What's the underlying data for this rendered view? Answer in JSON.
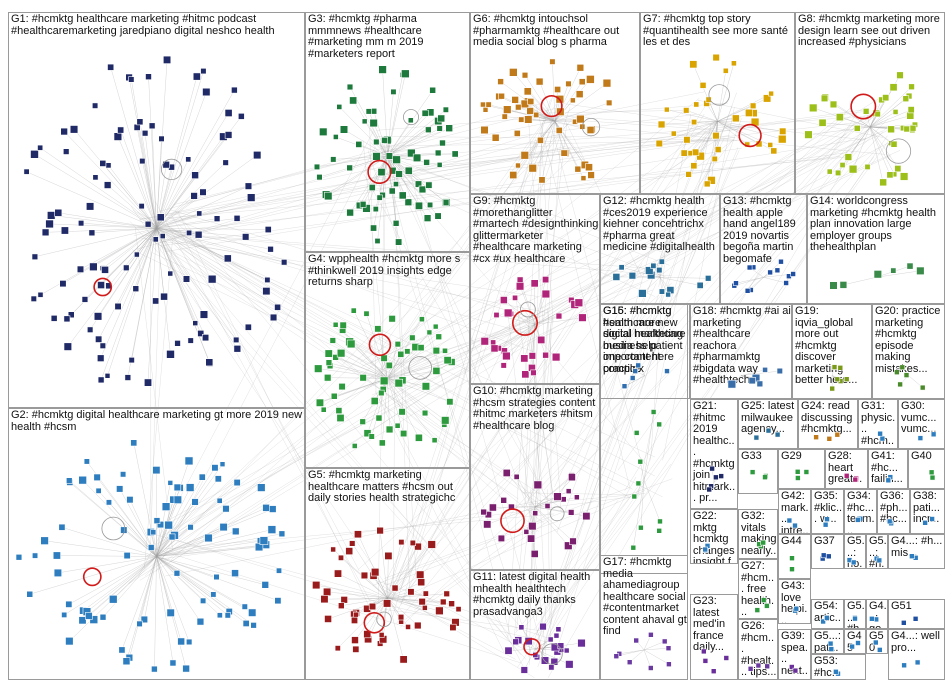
{
  "graph": {
    "edge_color": "#9e9e9e",
    "groups": [
      {
        "id": "G1",
        "label": "G1: #hcmktg healthcare marketing #hitmc podcast #healthcaremarketing jaredpiano digital neshco health",
        "color": "#1f2a66",
        "nodes": 115
      },
      {
        "id": "G2",
        "label": "G2: #hcmktg digital healthcare marketing gt more 2019 new health #hcsm",
        "color": "#2e7ebf",
        "nodes": 95
      },
      {
        "id": "G3",
        "label": "G3: #hcmktg #pharma mmmnews #healthcare #marketing mm m 2019 #marketers report",
        "color": "#1e7a3c",
        "nodes": 75
      },
      {
        "id": "G4",
        "label": "G4: wpphealth #hcmktg more s #thinkwell 2019 insights edge returns sharp",
        "color": "#2e9a3e",
        "nodes": 65
      },
      {
        "id": "G5",
        "label": "G5: #hcmktg marketing healthcare matters #hcsm out daily stories health strategichc",
        "color": "#9a1b1b",
        "nodes": 55
      },
      {
        "id": "G6",
        "label": "G6: #hcmktg intouchsol #pharmamktg #healthcare out media social blog s pharma",
        "color": "#c07a1a",
        "nodes": 55
      },
      {
        "id": "G7",
        "label": "G7: #hcmktg top story #quantihealth see more santé les et des",
        "color": "#d9a400",
        "nodes": 40
      },
      {
        "id": "G8",
        "label": "G8: #hcmktg marketing more design learn see out driven increased #physicians",
        "color": "#9cbf1a",
        "nodes": 40
      },
      {
        "id": "G9",
        "label": "G9: #hcmktg #morethanglitter #martech #designthinking glittermarketer #healthcare marketing #cx #ux healthcare",
        "color": "#b0257a",
        "nodes": 30
      },
      {
        "id": "G10",
        "label": "G10: #hcmktg marketing #hcsm strategies content #hitmc marketers #hitsm #healthcare blog",
        "color": "#7a1f6e",
        "nodes": 26
      },
      {
        "id": "G11",
        "label": "G11: latest digital health mhealth healthtech #hcmktg daily thanks prasadvanga3",
        "color": "#6a2e9a",
        "nodes": 22
      },
      {
        "id": "G12",
        "label": "G12: #hcmktg health #ces2019 experience kiehner concehtrichx #pharma great medicine #digitalhealth",
        "color": "#2a6e9a",
        "nodes": 14
      },
      {
        "id": "G13",
        "label": "G13: #hcmktg health apple hand angel189 2019 novartis begoña martin begomafe",
        "color": "#1e4fa0",
        "nodes": 12
      },
      {
        "id": "G14",
        "label": "G14: worldcongress marketing #hcmktg health plan innovation large employer groups thehealthplan",
        "color": "#3a8a4a",
        "nodes": 6
      },
      {
        "id": "G15",
        "label": "G15: #hcmktg healthcare new digital marketing business patient one content complex",
        "color": "#2e9a3e",
        "nodes": 10
      },
      {
        "id": "G16",
        "label": "G16: #hcmktg #smm more social healthcare media help important here practice",
        "color": "#2f6fb0",
        "nodes": 6
      },
      {
        "id": "G17",
        "label": "G17: #hcmktg media ahamediagroup healthcare social #contentmarket content ahaval gt find",
        "color": "#6a3aa0",
        "nodes": 9
      },
      {
        "id": "G18",
        "label": "G18: #hcmktg #ai ai marketing #healthcare reachora #pharmamktg #bigdata way #healthtech",
        "color": "#3a6ea8",
        "nodes": 6
      },
      {
        "id": "G19",
        "label": "G19: iqvia_global more out #hcmktg discover marketing better here...",
        "color": "#7a9a1a",
        "nodes": 6
      },
      {
        "id": "G20",
        "label": "G20: practice marketing #hcmktg episode making mistakes...",
        "color": "#4a8a2a",
        "nodes": 5
      },
      {
        "id": "G21",
        "label": "G21: #hitmc 2019 healthc... #hcmktg join hitmark... pr...",
        "color": "#1f2a66",
        "nodes": 5
      },
      {
        "id": "G22",
        "label": "G22: mktg hcmktg changes insight f cco...",
        "color": "#2e7ebf",
        "nodes": 4
      },
      {
        "id": "G23",
        "label": "G23: latest med'in france daily...",
        "color": "#6a2e9a",
        "nodes": 4
      },
      {
        "id": "G24",
        "label": "G24: read discussing #hcmktg...",
        "color": "#c07a1a",
        "nodes": 3
      },
      {
        "id": "G25",
        "label": "G25: latest milwaukee agency...",
        "color": "#2a6e9a",
        "nodes": 3
      },
      {
        "id": "G26",
        "label": "G26: #hcm... #healt... tips...",
        "color": "#6a3aa0",
        "nodes": 3
      },
      {
        "id": "G27",
        "label": "G27: #hcm... free health...",
        "color": "#2e9a3e",
        "nodes": 3
      },
      {
        "id": "G28",
        "label": "G28: heart great...",
        "color": "#b0257a",
        "nodes": 3
      },
      {
        "id": "G29",
        "label": "G29",
        "color": "#2e9a3e",
        "nodes": 3
      },
      {
        "id": "G30",
        "label": "G30: vumc... vumc...",
        "color": "#2e7ebf",
        "nodes": 2
      },
      {
        "id": "G31",
        "label": "G31: physic... #hcm...",
        "color": "#2e7ebf",
        "nodes": 2
      },
      {
        "id": "G32",
        "label": "G32: vitals making nearly...",
        "color": "#2e9a3e",
        "nodes": 3
      },
      {
        "id": "G33",
        "label": "G33",
        "color": "#2e9a3e",
        "nodes": 3
      },
      {
        "id": "G34",
        "label": "G34: #hc... team...",
        "color": "#2e7ebf",
        "nodes": 2
      },
      {
        "id": "G35",
        "label": "G35: #klic... w...",
        "color": "#2e7ebf",
        "nodes": 2
      },
      {
        "id": "G36",
        "label": "G36: #ph... #hc...",
        "color": "#2e7ebf",
        "nodes": 2
      },
      {
        "id": "G37",
        "label": "G37",
        "color": "#1e4fa0",
        "nodes": 3
      },
      {
        "id": "G38",
        "label": "G38: pati... incr...",
        "color": "#2e7ebf",
        "nodes": 2
      },
      {
        "id": "G39",
        "label": "G39: spea... next...",
        "color": "#6a2e9a",
        "nodes": 2
      },
      {
        "id": "G40",
        "label": "G40",
        "color": "#2e9a3e",
        "nodes": 2
      },
      {
        "id": "G41",
        "label": "G41: #hc... failin...",
        "color": "#2e7ebf",
        "nodes": 2
      },
      {
        "id": "G42",
        "label": "G42: mark... intre...",
        "color": "#2e7ebf",
        "nodes": 2
      },
      {
        "id": "G43",
        "label": "G43: love helpi...",
        "color": "#2e7ebf",
        "nodes": 2
      },
      {
        "id": "G44",
        "label": "G44",
        "color": "#2e9a3e",
        "nodes": 2
      },
      {
        "id": "G45",
        "label": "G45",
        "color": "#2e7ebf",
        "nodes": 2
      },
      {
        "id": "G46",
        "label": "G5...: #h... nyti...",
        "color": "#2e7ebf",
        "nodes": 2
      },
      {
        "id": "G47",
        "label": "G4...: #h... reg...",
        "color": "#2e7ebf",
        "nodes": 2
      },
      {
        "id": "G48",
        "label": "G4...: #h... mis...",
        "color": "#2e7ebf",
        "nodes": 2
      },
      {
        "id": "G49",
        "label": "G4...: go... reg...",
        "color": "#2e7ebf",
        "nodes": 2
      },
      {
        "id": "G50",
        "label": "G50",
        "color": "#2e7ebf",
        "nodes": 2
      },
      {
        "id": "G51",
        "label": "G51",
        "color": "#1e4fa0",
        "nodes": 2
      },
      {
        "id": "G52",
        "label": "G5...: #h... eff... sto...",
        "color": "#2e7ebf",
        "nodes": 2
      },
      {
        "id": "G53",
        "label": "G53: #hc...",
        "color": "#2e7ebf",
        "nodes": 2
      },
      {
        "id": "G54",
        "label": "G54: artic...",
        "color": "#2e7ebf",
        "nodes": 2
      },
      {
        "id": "G55",
        "label": "G5...: ho... har...",
        "color": "#2e7ebf",
        "nodes": 2
      },
      {
        "id": "G56",
        "label": "G5...: pat... bui...",
        "color": "#2e7ebf",
        "nodes": 2
      },
      {
        "id": "G57",
        "label": "G4...: well pro...",
        "color": "#2e7ebf",
        "nodes": 2
      }
    ]
  }
}
